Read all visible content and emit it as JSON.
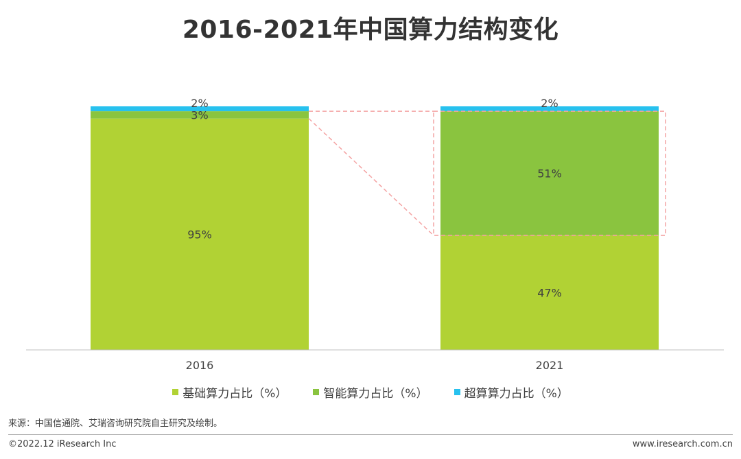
{
  "title": "2016-2021年中国算力结构变化",
  "source": "来源：中国信通院、艾瑞咨询研究院自主研究及绘制。",
  "copyright": "©2022.12 iResearch Inc",
  "website": "www.iresearch.com.cn",
  "chart_data": {
    "type": "bar",
    "stacked": true,
    "categories": [
      "2016",
      "2021"
    ],
    "series": [
      {
        "name": "基础算力占比（%）",
        "values": [
          95,
          47
        ],
        "labels": [
          "95%",
          "47%"
        ],
        "color": "#b1d234"
      },
      {
        "name": "智能算力占比（%）",
        "values": [
          3,
          51
        ],
        "labels": [
          "3%",
          "51%"
        ],
        "color": "#8ac43f"
      },
      {
        "name": "超算算力占比（%）",
        "values": [
          2,
          2
        ],
        "labels": [
          "2%",
          "2%"
        ],
        "color": "#27c1ee"
      }
    ],
    "ylim": [
      0,
      100
    ],
    "grid": false,
    "legend": "bottom",
    "highlight": {
      "series": "智能算力占比（%）",
      "color": "#f4a3a3"
    }
  }
}
